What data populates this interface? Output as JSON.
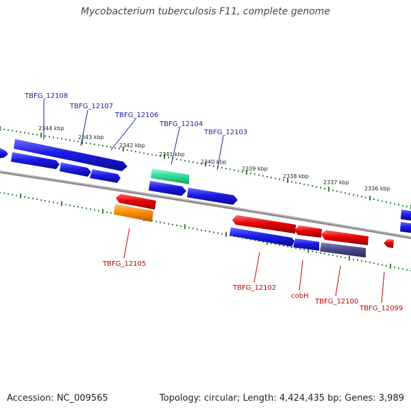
{
  "title": "Mycobacterium tuberculosis F11, complete genome",
  "footer": {
    "accession": "Accession: NC_009565",
    "summary": "Topology: circular; Length: 4,424,435 bp; Genes: 3,989"
  },
  "colors": {
    "backbone": "#8c8c8c",
    "tick": "#2e7d32",
    "forward_gene": "#1a1ae6",
    "reverse_gene": "#e60000",
    "teal_gene": "#33dd99",
    "orange_gene": "#ff8c00",
    "slate_gene": "#4a4a8a",
    "forward_label": "#1a1aa0",
    "reverse_label": "#c00000"
  },
  "scale_labels": [
    "2344 kbp",
    "2343 kbp",
    "2342 kbp",
    "2341 kbp",
    "2340 kbp",
    "2339 kbp",
    "2338 kbp",
    "2337 kbp",
    "2336 kbp"
  ],
  "forward_labels": [
    "TBFG_12108",
    "TBFG_12107",
    "TBFG_12106",
    "TBFG_12104",
    "TBFG_12103"
  ],
  "reverse_labels": [
    "TBFG_12105",
    "TBFG_12102",
    "cobH",
    "TBFG_12100",
    "TBFG_12099"
  ]
}
